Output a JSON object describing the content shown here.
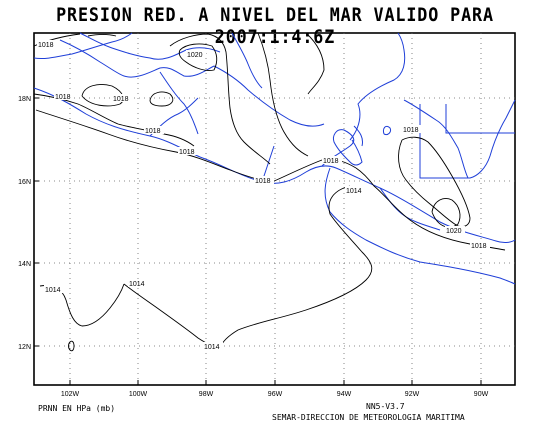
{
  "title": "PRESION RED. A NIVEL DEL MAR VALIDO PARA 2007:1:4:6Z",
  "lon_labels": [
    "102W",
    "100W",
    "98W",
    "96W",
    "94W",
    "92W",
    "90W"
  ],
  "lat_labels": [
    "18N",
    "16N",
    "14N",
    "12N"
  ],
  "isobar_labels": [
    "1018",
    "1018",
    "1018",
    "1020",
    "1018",
    "1018",
    "1018",
    "1018",
    "1018",
    "1014",
    "1020",
    "1018",
    "1014",
    "1014",
    "1014"
  ],
  "footer": {
    "variable": "PRNN EN HPa (mb)",
    "model": "NN5-V3.7",
    "agency": "SEMAR-DIRECCION DE METEOROLOGIA MARITIMA"
  },
  "colors": {
    "coastline": "#1f3fd8",
    "contour": "#000000",
    "grid": "#555555"
  }
}
